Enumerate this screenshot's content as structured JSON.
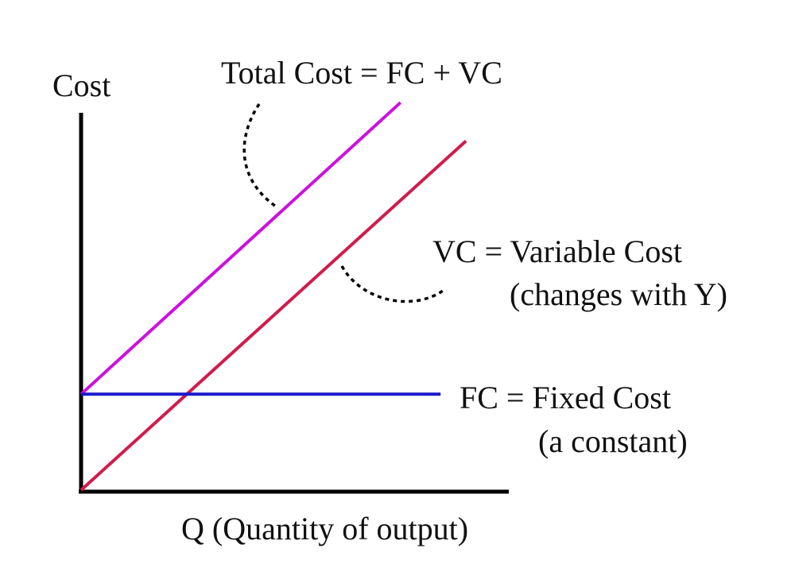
{
  "chart_data": {
    "type": "line",
    "title": "",
    "xlabel": "Q (Quantity of output)",
    "ylabel": "Cost",
    "xlim": [
      0,
      10
    ],
    "ylim": [
      0,
      10
    ],
    "grid": false,
    "legend": "none",
    "series": [
      {
        "key": "tc",
        "label_lines": [
          "Total Cost = FC + VC"
        ],
        "color": "#cc11dd",
        "x": [
          0,
          7.55
        ],
        "y": [
          2.5,
          10.1
        ]
      },
      {
        "key": "vc",
        "label_lines": [
          "VC = Variable Cost",
          "(changes with Y)"
        ],
        "color": "#d01c4c",
        "x": [
          0,
          9.1
        ],
        "y": [
          0,
          9.1
        ]
      },
      {
        "key": "fc",
        "label_lines": [
          "FC = Fixed Cost",
          "(a constant)"
        ],
        "color": "#1a1acc",
        "x": [
          0,
          8.5
        ],
        "y": [
          2.5,
          2.5
        ]
      }
    ]
  }
}
